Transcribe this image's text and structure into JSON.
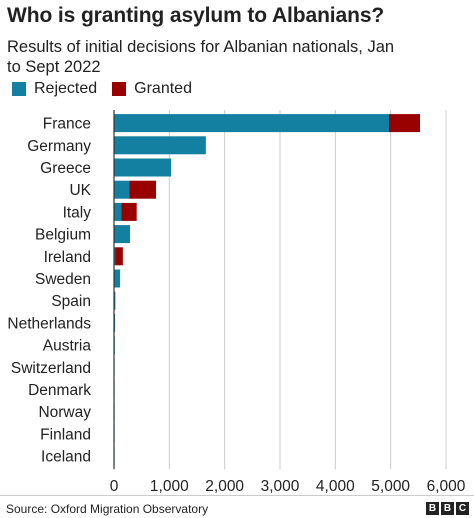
{
  "title": "Who is granting asylum to Albanians?",
  "subtitle": "Results of initial decisions for Albanian nationals, Jan to Sept 2022",
  "source": "Source: Oxford Migration Observatory",
  "logo": [
    "B",
    "B",
    "C"
  ],
  "colors": {
    "rejected": "#1380a1",
    "granted": "#990000",
    "grid": "#cccccc",
    "axis": "#333333"
  },
  "chart_data": {
    "type": "bar",
    "orientation": "horizontal",
    "stacked": true,
    "categories": [
      "France",
      "Germany",
      "Greece",
      "UK",
      "Italy",
      "Belgium",
      "Ireland",
      "Sweden",
      "Spain",
      "Netherlands",
      "Austria",
      "Switzerland",
      "Denmark",
      "Norway",
      "Finland",
      "Iceland"
    ],
    "series": [
      {
        "name": "Rejected",
        "color": "#1380a1",
        "values": [
          4970,
          1660,
          1030,
          280,
          130,
          290,
          20,
          110,
          25,
          20,
          15,
          5,
          3,
          2,
          1,
          1
        ]
      },
      {
        "name": "Granted",
        "color": "#990000",
        "values": [
          560,
          0,
          0,
          480,
          280,
          0,
          140,
          0,
          0,
          0,
          0,
          0,
          0,
          0,
          0,
          0
        ]
      }
    ],
    "xlim": [
      0,
      6000
    ],
    "xticks": [
      0,
      1000,
      2000,
      3000,
      4000,
      5000,
      6000
    ],
    "xtick_labels": [
      "0",
      "1,000",
      "2,000",
      "3,000",
      "4,000",
      "5,000",
      "6,000"
    ],
    "grid": true,
    "legend_position": "top-left"
  }
}
